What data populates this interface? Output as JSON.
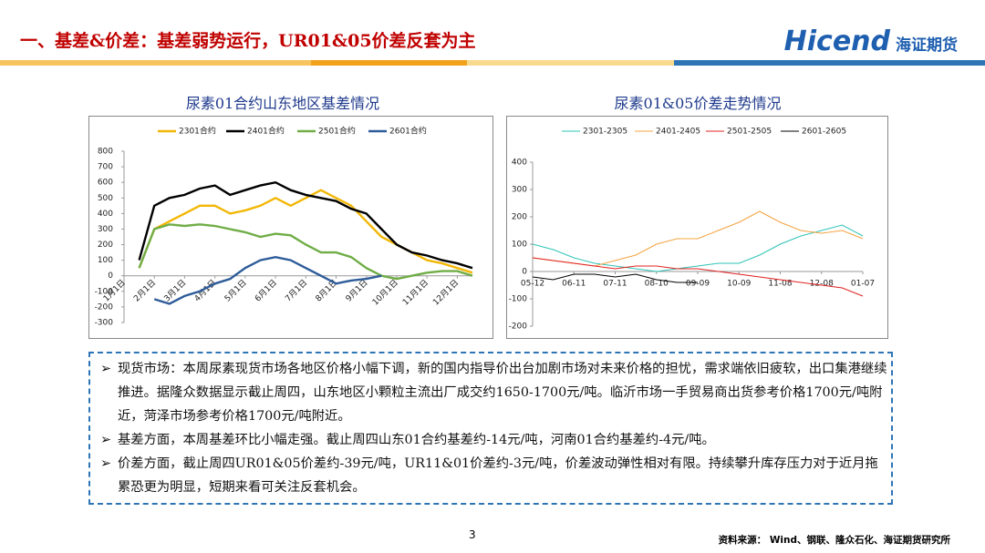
{
  "header": {
    "title": "一、基差&价差：基差弱势运行，UR01&05价差反套为主",
    "logo_en": "Hicend",
    "logo_cn": "海证期货"
  },
  "chart_data": [
    {
      "type": "line",
      "title": "尿素01合约山东地区基差情况",
      "categories": [
        "1月1日",
        null,
        "2月1日",
        null,
        "3月1日",
        null,
        "4月1日",
        null,
        "5月1日",
        null,
        "6月1日",
        null,
        "7月1日",
        null,
        "8月1日",
        null,
        "9月1日",
        null,
        "10月1日",
        null,
        "11月1日",
        null,
        "12月1日",
        null
      ],
      "ylim": [
        -300,
        800
      ],
      "yticks": [
        -300,
        -200,
        -100,
        0,
        100,
        200,
        300,
        400,
        500,
        600,
        700,
        800
      ],
      "grid": false,
      "series": [
        {
          "name": "2301合约",
          "color": "#f2b705",
          "values": [
            null,
            50,
            300,
            350,
            400,
            450,
            450,
            400,
            420,
            450,
            500,
            450,
            500,
            550,
            500,
            450,
            350,
            250,
            200,
            150,
            100,
            80,
            50,
            20
          ]
        },
        {
          "name": "2401合约",
          "color": "#000000",
          "values": [
            null,
            100,
            450,
            500,
            520,
            560,
            580,
            520,
            550,
            580,
            600,
            550,
            520,
            500,
            480,
            430,
            400,
            300,
            200,
            150,
            130,
            100,
            80,
            50
          ]
        },
        {
          "name": "2501合约",
          "color": "#70ad47",
          "values": [
            null,
            50,
            300,
            330,
            320,
            330,
            320,
            300,
            280,
            250,
            270,
            260,
            200,
            150,
            150,
            120,
            50,
            0,
            -20,
            0,
            20,
            30,
            30,
            0
          ]
        },
        {
          "name": "2601合约",
          "color": "#2e5c9a",
          "values": [
            null,
            null,
            -150,
            -180,
            -130,
            -100,
            -50,
            -20,
            50,
            100,
            120,
            100,
            50,
            0,
            -50,
            -30,
            -20,
            0,
            null,
            null,
            null,
            null,
            null,
            null
          ]
        }
      ]
    },
    {
      "type": "line",
      "title": "尿素01&05价差走势情况",
      "categories": [
        "05-12",
        null,
        "06-11",
        null,
        "07-11",
        null,
        "08-10",
        null,
        "09-09",
        null,
        "10-09",
        null,
        "11-08",
        null,
        "12-08",
        null,
        "01-07"
      ],
      "ylim": [
        -200,
        400
      ],
      "yticks": [
        -200,
        -100,
        0,
        100,
        200,
        300,
        400
      ],
      "grid": false,
      "series": [
        {
          "name": "2301-2305",
          "color": "#2ec4b6",
          "values": [
            100,
            80,
            50,
            30,
            20,
            10,
            0,
            10,
            20,
            30,
            30,
            60,
            100,
            130,
            150,
            170,
            130
          ]
        },
        {
          "name": "2401-2405",
          "color": "#f4a340",
          "values": [
            50,
            40,
            30,
            20,
            40,
            60,
            100,
            120,
            120,
            150,
            180,
            220,
            180,
            150,
            140,
            150,
            120
          ]
        },
        {
          "name": "2501-2505",
          "color": "#e02020",
          "values": [
            50,
            40,
            30,
            20,
            10,
            20,
            20,
            10,
            10,
            0,
            -10,
            -20,
            -30,
            -40,
            -50,
            -60,
            -90
          ]
        },
        {
          "name": "2601-2605",
          "color": "#000000",
          "values": [
            -20,
            -30,
            -10,
            -10,
            -20,
            -10,
            -30,
            -40,
            -40,
            null,
            null,
            null,
            null,
            null,
            null,
            null,
            null
          ]
        }
      ]
    }
  ],
  "bullets": [
    "现货市场：本周尿素现货市场各地区价格小幅下调，新的国内指导价出台加剧市场对未来价格的担忧，需求端依旧疲软，出口集港继续推进。据隆众数据显示截止周四，山东地区小颗粒主流出厂成交约1650-1700元/吨。临沂市场一手贸易商出货参考价格1700元/吨附近，菏泽市场参考价格1700元/吨附近。",
    "基差方面，本周基差环比小幅走强。截止周四山东01合约基差约-14元/吨，河南01合约基差约-4元/吨。",
    "价差方面，截止周四UR01&05价差约-39元/吨，UR11&01价差约-3元/吨，价差波动弹性相对有限。持续攀升库存压力对于近月拖累恐更为明显，短期来看可关注反套机会。"
  ],
  "footer": {
    "page": "3",
    "source": "资料来源： Wind、钢联、隆众石化、海证期货研究所"
  }
}
